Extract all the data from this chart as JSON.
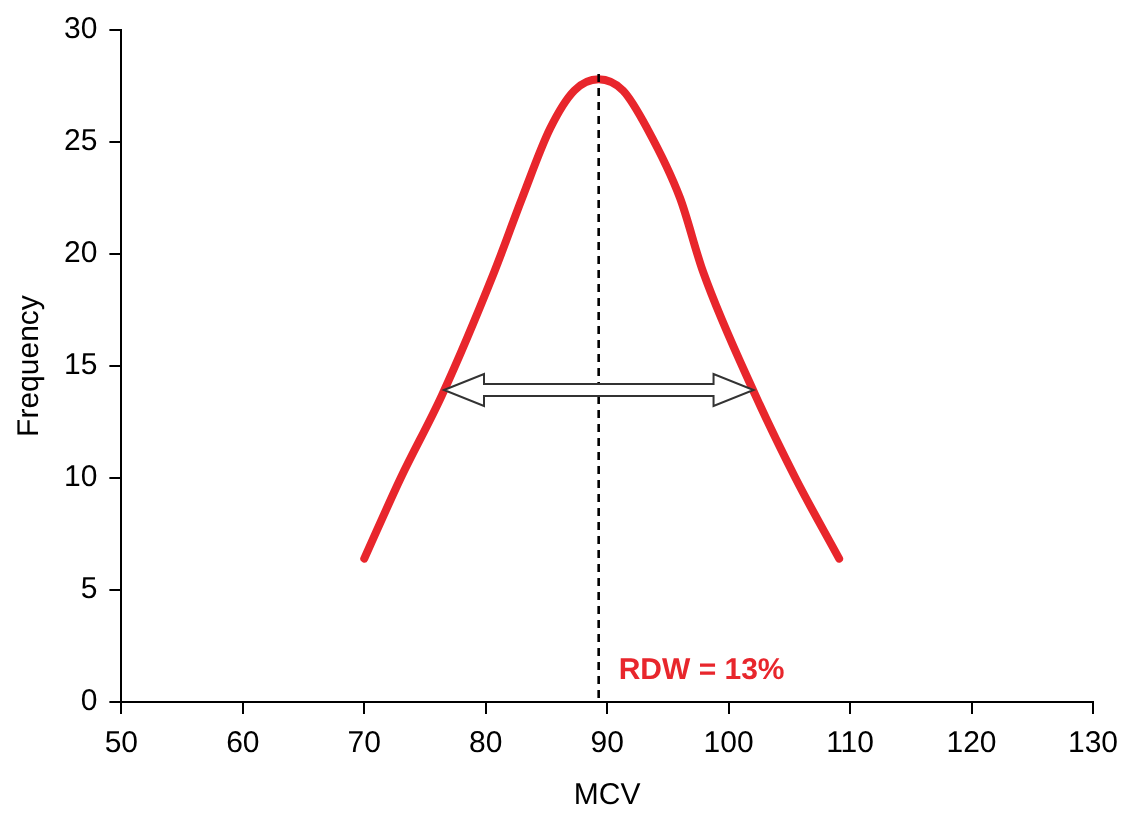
{
  "chart_data": {
    "type": "line",
    "xlabel": "MCV",
    "ylabel": "Frequency",
    "series": [
      {
        "color": "#e8262c",
        "x": [
          70,
          73,
          76.4,
          80.7,
          83,
          85.3,
          87.3,
          89.3,
          91.3,
          93.3,
          96,
          97.9,
          102.2,
          105.5,
          109.1
        ],
        "values": [
          6.4,
          10,
          13.7,
          19.2,
          22.5,
          25.6,
          27.3,
          27.8,
          27.3,
          25.6,
          22.5,
          19.2,
          13.7,
          10,
          6.4
        ]
      }
    ],
    "xlim": [
      50,
      130
    ],
    "xticks": [
      50,
      60,
      70,
      80,
      90,
      100,
      110,
      120,
      130
    ],
    "ylim": [
      0,
      30
    ],
    "yticks": [
      0,
      5,
      10,
      15,
      20,
      25,
      30
    ],
    "ref_lines": [
      {
        "axis": "x",
        "value": 89.3,
        "color": "#000000",
        "line_style": "dashed"
      }
    ],
    "annotations": [
      "RDW = 13%"
    ],
    "grid": false,
    "legend": false,
    "marker": "none",
    "line_style": "solid"
  }
}
